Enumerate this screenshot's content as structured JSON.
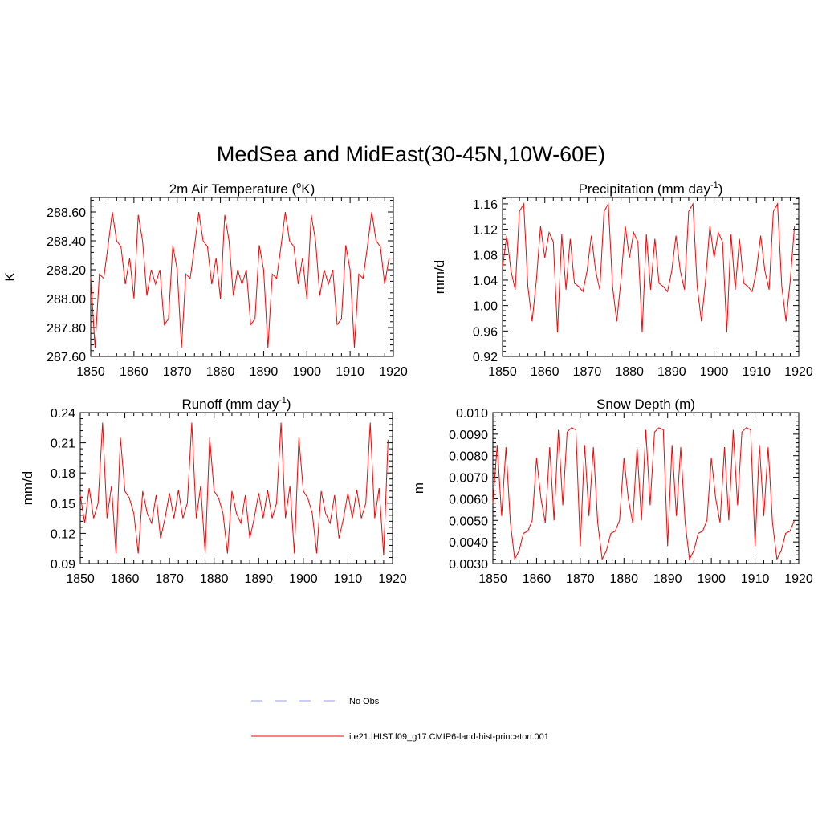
{
  "main_title": "MedSea and MidEast(30-45N,10W-60E)",
  "legend": {
    "obs_label": "No Obs",
    "obs_color": "#9999ff",
    "model_label": "i.e21.IHIST.f09_g17.CMIP6-land-hist-princeton.001",
    "model_color": "#ff0000"
  },
  "chart_data": [
    {
      "type": "line",
      "title": "2m Air Temperature (",
      "title_sup": "o",
      "title_end": "K)",
      "ylabel": "K",
      "xlim": [
        1850,
        1920
      ],
      "ylim": [
        287.6,
        288.7
      ],
      "xticks": [
        1850,
        1860,
        1870,
        1880,
        1890,
        1900,
        1910,
        1920
      ],
      "yticks": [
        287.6,
        287.8,
        288.0,
        288.2,
        288.4,
        288.6
      ],
      "ytick_labels": [
        "287.60",
        "287.80",
        "288.00",
        "288.20",
        "288.40",
        "288.60"
      ],
      "series": [
        {
          "x": [
            1850,
            1851,
            1852,
            1853,
            1854,
            1855,
            1856,
            1857,
            1858,
            1859,
            1860,
            1861,
            1862,
            1863,
            1864,
            1865,
            1866,
            1867,
            1868,
            1869,
            1870,
            1871,
            1872,
            1873,
            1874,
            1875,
            1876,
            1877,
            1878,
            1879,
            1880,
            1881,
            1882,
            1883,
            1884,
            1885,
            1886,
            1887,
            1888,
            1889,
            1890,
            1891,
            1892,
            1893,
            1894,
            1895,
            1896,
            1897,
            1898,
            1899,
            1900,
            1901,
            1902,
            1903,
            1904,
            1905,
            1906,
            1907,
            1908,
            1909,
            1910,
            1911,
            1912,
            1913,
            1914,
            1915,
            1916,
            1917,
            1918,
            1919
          ],
          "values": [
            288.15,
            287.66,
            288.17,
            288.14,
            288.36,
            288.6,
            288.4,
            288.36,
            288.1,
            288.28,
            288.0,
            288.58,
            288.4,
            288.02,
            288.2,
            288.1,
            288.2,
            287.82,
            287.86,
            288.37,
            288.2,
            287.66,
            288.17,
            288.14,
            288.36,
            288.6,
            288.4,
            288.36,
            288.1,
            288.28,
            288.0,
            288.58,
            288.4,
            288.02,
            288.2,
            288.1,
            288.2,
            287.82,
            287.86,
            288.37,
            288.2,
            287.66,
            288.17,
            288.14,
            288.36,
            288.6,
            288.4,
            288.36,
            288.1,
            288.28,
            288.0,
            288.58,
            288.4,
            288.02,
            288.2,
            288.1,
            288.2,
            287.82,
            287.86,
            288.37,
            288.2,
            287.66,
            288.17,
            288.14,
            288.36,
            288.6,
            288.4,
            288.36,
            288.1,
            288.28
          ]
        }
      ]
    },
    {
      "type": "line",
      "title": "Precipitation (mm day",
      "title_sup": "-1",
      "title_end": ")",
      "ylabel": "mm/d",
      "xlim": [
        1850,
        1920
      ],
      "ylim": [
        0.92,
        1.17
      ],
      "xticks": [
        1850,
        1860,
        1870,
        1880,
        1890,
        1900,
        1910,
        1920
      ],
      "yticks": [
        0.92,
        0.96,
        1.0,
        1.04,
        1.08,
        1.12,
        1.16
      ],
      "ytick_labels": [
        "0.92",
        "0.96",
        "1.00",
        "1.04",
        "1.08",
        "1.12",
        "1.16"
      ],
      "series": [
        {
          "x": [
            1850,
            1851,
            1852,
            1853,
            1854,
            1855,
            1856,
            1857,
            1858,
            1859,
            1860,
            1861,
            1862,
            1863,
            1864,
            1865,
            1866,
            1867,
            1868,
            1869,
            1870,
            1871,
            1872,
            1873,
            1874,
            1875,
            1876,
            1877,
            1878,
            1879,
            1880,
            1881,
            1882,
            1883,
            1884,
            1885,
            1886,
            1887,
            1888,
            1889,
            1890,
            1891,
            1892,
            1893,
            1894,
            1895,
            1896,
            1897,
            1898,
            1899,
            1900,
            1901,
            1902,
            1903,
            1904,
            1905,
            1906,
            1907,
            1908,
            1909,
            1910,
            1911,
            1912,
            1913,
            1914,
            1915,
            1916,
            1917,
            1918,
            1919
          ],
          "values": [
            1.06,
            1.11,
            1.055,
            1.025,
            1.148,
            1.16,
            1.03,
            0.975,
            1.04,
            1.125,
            1.075,
            1.115,
            1.1,
            0.958,
            1.112,
            1.025,
            1.105,
            1.035,
            1.03,
            1.022,
            1.055,
            1.11,
            1.055,
            1.025,
            1.148,
            1.16,
            1.03,
            0.975,
            1.04,
            1.125,
            1.075,
            1.115,
            1.1,
            0.958,
            1.112,
            1.025,
            1.105,
            1.035,
            1.03,
            1.022,
            1.055,
            1.11,
            1.055,
            1.025,
            1.148,
            1.16,
            1.03,
            0.975,
            1.04,
            1.125,
            1.075,
            1.115,
            1.1,
            0.958,
            1.112,
            1.025,
            1.105,
            1.035,
            1.03,
            1.022,
            1.055,
            1.11,
            1.055,
            1.025,
            1.148,
            1.16,
            1.03,
            0.975,
            1.04,
            1.125
          ]
        }
      ]
    },
    {
      "type": "line",
      "title": "Runoff (mm day",
      "title_sup": "-1",
      "title_end": ")",
      "ylabel": "mm/d",
      "xlim": [
        1850,
        1920
      ],
      "ylim": [
        0.09,
        0.24
      ],
      "xticks": [
        1850,
        1860,
        1870,
        1880,
        1890,
        1900,
        1910,
        1920
      ],
      "yticks": [
        0.09,
        0.12,
        0.15,
        0.18,
        0.21,
        0.24
      ],
      "ytick_labels": [
        "0.09",
        "0.12",
        "0.15",
        "0.18",
        "0.21",
        "0.24"
      ],
      "series": [
        {
          "x": [
            1850,
            1851,
            1852,
            1853,
            1854,
            1855,
            1856,
            1857,
            1858,
            1859,
            1860,
            1861,
            1862,
            1863,
            1864,
            1865,
            1866,
            1867,
            1868,
            1869,
            1870,
            1871,
            1872,
            1873,
            1874,
            1875,
            1876,
            1877,
            1878,
            1879,
            1880,
            1881,
            1882,
            1883,
            1884,
            1885,
            1886,
            1887,
            1888,
            1889,
            1890,
            1891,
            1892,
            1893,
            1894,
            1895,
            1896,
            1897,
            1898,
            1899,
            1900,
            1901,
            1902,
            1903,
            1904,
            1905,
            1906,
            1907,
            1908,
            1909,
            1910,
            1911,
            1912,
            1913,
            1914,
            1915,
            1916,
            1917,
            1918,
            1919
          ],
          "values": [
            0.158,
            0.13,
            0.165,
            0.135,
            0.15,
            0.23,
            0.135,
            0.167,
            0.1,
            0.215,
            0.162,
            0.155,
            0.14,
            0.1,
            0.162,
            0.14,
            0.13,
            0.158,
            0.115,
            0.135,
            0.16,
            0.135,
            0.163,
            0.135,
            0.15,
            0.23,
            0.135,
            0.167,
            0.1,
            0.215,
            0.162,
            0.155,
            0.14,
            0.1,
            0.162,
            0.14,
            0.13,
            0.158,
            0.115,
            0.135,
            0.16,
            0.135,
            0.163,
            0.135,
            0.15,
            0.23,
            0.135,
            0.167,
            0.1,
            0.215,
            0.162,
            0.155,
            0.14,
            0.1,
            0.162,
            0.14,
            0.13,
            0.158,
            0.115,
            0.135,
            0.16,
            0.135,
            0.163,
            0.135,
            0.15,
            0.23,
            0.135,
            0.165,
            0.098,
            0.213
          ]
        }
      ]
    },
    {
      "type": "line",
      "title": "Snow Depth (m)",
      "title_sup": "",
      "title_end": "",
      "ylabel": "m",
      "xlim": [
        1850,
        1920
      ],
      "ylim": [
        0.003,
        0.01
      ],
      "xticks": [
        1850,
        1860,
        1870,
        1880,
        1890,
        1900,
        1910,
        1920
      ],
      "yticks": [
        0.003,
        0.004,
        0.005,
        0.006,
        0.007,
        0.008,
        0.009,
        0.01
      ],
      "ytick_labels": [
        "0.0030",
        "0.0040",
        "0.0050",
        "0.0060",
        "0.0070",
        "0.0080",
        "0.0090",
        "0.010"
      ],
      "series": [
        {
          "x": [
            1850,
            1851,
            1852,
            1853,
            1854,
            1855,
            1856,
            1857,
            1858,
            1859,
            1860,
            1861,
            1862,
            1863,
            1864,
            1865,
            1866,
            1867,
            1868,
            1869,
            1870,
            1871,
            1872,
            1873,
            1874,
            1875,
            1876,
            1877,
            1878,
            1879,
            1880,
            1881,
            1882,
            1883,
            1884,
            1885,
            1886,
            1887,
            1888,
            1889,
            1890,
            1891,
            1892,
            1893,
            1894,
            1895,
            1896,
            1897,
            1898,
            1899,
            1900,
            1901,
            1902,
            1903,
            1904,
            1905,
            1906,
            1907,
            1908,
            1909,
            1910,
            1911,
            1912,
            1913,
            1914,
            1915,
            1916,
            1917,
            1918,
            1919
          ],
          "values": [
            0.0058,
            0.0085,
            0.0052,
            0.0084,
            0.0049,
            0.0032,
            0.0036,
            0.0044,
            0.0045,
            0.005,
            0.0079,
            0.006,
            0.0049,
            0.0084,
            0.005,
            0.0092,
            0.0057,
            0.0091,
            0.0093,
            0.0092,
            0.0038,
            0.0085,
            0.0052,
            0.0084,
            0.0049,
            0.0032,
            0.0036,
            0.0044,
            0.0045,
            0.005,
            0.0079,
            0.006,
            0.0049,
            0.0084,
            0.005,
            0.0092,
            0.0057,
            0.0091,
            0.0093,
            0.0092,
            0.0038,
            0.0085,
            0.0052,
            0.0084,
            0.0049,
            0.0032,
            0.0036,
            0.0044,
            0.0045,
            0.005,
            0.0079,
            0.006,
            0.0049,
            0.0084,
            0.005,
            0.0092,
            0.0057,
            0.0091,
            0.0093,
            0.0092,
            0.0038,
            0.0085,
            0.0052,
            0.0084,
            0.0049,
            0.0032,
            0.0036,
            0.0044,
            0.0045,
            0.005
          ]
        }
      ]
    }
  ]
}
